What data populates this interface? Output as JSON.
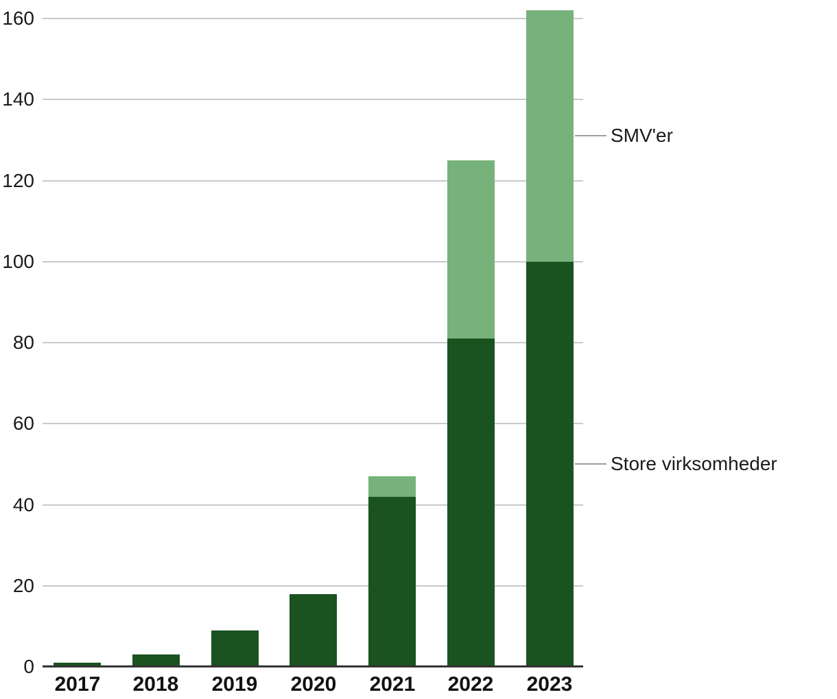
{
  "chart_data": {
    "type": "bar",
    "stacked": true,
    "title": "",
    "xlabel": "",
    "ylabel": "",
    "categories": [
      "2017",
      "2018",
      "2019",
      "2020",
      "2021",
      "2022",
      "2023"
    ],
    "series": [
      {
        "name": "Store virksomheder",
        "color": "#1a5220",
        "values": [
          1,
          3,
          9,
          18,
          42,
          81,
          100
        ]
      },
      {
        "name": "SMV'er",
        "color": "#77b27a",
        "values": [
          0,
          0,
          0,
          0,
          5,
          44,
          62
        ]
      }
    ],
    "totals": [
      1,
      3,
      9,
      18,
      47,
      125,
      162
    ],
    "ylim": [
      0,
      160
    ],
    "yticks": [
      0,
      20,
      40,
      60,
      80,
      100,
      120,
      140,
      160
    ],
    "grid": true,
    "legend_position": "right-annotations",
    "annotations": [
      {
        "label": "SMV'er",
        "series": "SMV'er"
      },
      {
        "label": "Store virksomheder",
        "series": "Store virksomheder"
      }
    ]
  },
  "colors": {
    "grid": "#c9c9c9",
    "axis": "#333333",
    "tick_text": "#1a1a1a",
    "xlabel_text": "#111111",
    "annotation_line": "#9e9e9e",
    "annotation_text": "#1a1a1a",
    "background": "#ffffff"
  }
}
